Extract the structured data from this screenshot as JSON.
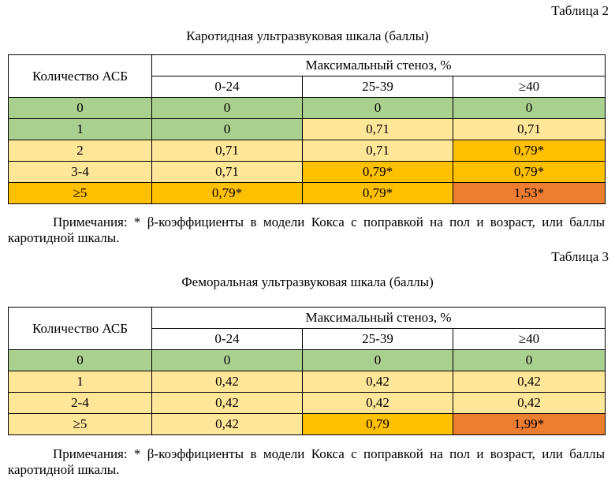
{
  "table2": {
    "label": "Таблица 2",
    "title": "Каротидная ультразвуковая шкала (баллы)",
    "row_header": "Количество АСБ",
    "group_header": "Максимальный стеноз, %",
    "columns": [
      "0-24",
      "25-39",
      "≥40"
    ],
    "rows": [
      {
        "label": "0",
        "cells": [
          "0",
          "0",
          "0"
        ],
        "level": [
          "green",
          "green",
          "green"
        ]
      },
      {
        "label": "1",
        "cells": [
          "0",
          "0,71",
          "0,71"
        ],
        "level": [
          "green",
          "light",
          "light"
        ]
      },
      {
        "label": "2",
        "cells": [
          "0,71",
          "0,71",
          "0,79*"
        ],
        "level": [
          "light",
          "light",
          "amber"
        ]
      },
      {
        "label": "3-4",
        "cells": [
          "0,71",
          "0,79*",
          "0,79*"
        ],
        "level": [
          "light",
          "amber",
          "amber"
        ]
      },
      {
        "label": "≥5",
        "cells": [
          "0,79*",
          "0,79*",
          "1,53*"
        ],
        "level": [
          "amber",
          "amber",
          "orange"
        ]
      }
    ],
    "note": "Примечания: * β-коэффициенты в модели Кокса с поправкой на пол и возраст, или баллы каротидной шкалы."
  },
  "table3": {
    "label": "Таблица 3",
    "title": "Феморальная ультразвуковая шкала (баллы)",
    "row_header": "Количество АСБ",
    "group_header": "Максимальный стеноз, %",
    "columns": [
      "0-24",
      "25-39",
      "≥40"
    ],
    "rows": [
      {
        "label": "0",
        "cells": [
          "0",
          "0",
          "0"
        ],
        "level": [
          "green",
          "green",
          "green"
        ]
      },
      {
        "label": "1",
        "cells": [
          "0,42",
          "0,42",
          "0,42"
        ],
        "level": [
          "light",
          "light",
          "light"
        ]
      },
      {
        "label": "2-4",
        "cells": [
          "0,42",
          "0,42",
          "0,42"
        ],
        "level": [
          "light",
          "light",
          "light"
        ]
      },
      {
        "label": "≥5",
        "cells": [
          "0,42",
          "0,79",
          "1,99*"
        ],
        "level": [
          "light",
          "amber",
          "orange"
        ]
      }
    ],
    "note": "Примечания: * β-коэффициенты в модели Кокса с поправкой на пол и возраст, или баллы каротидной шкалы."
  },
  "colors": {
    "green": "#a9d08e",
    "light": "#ffe699",
    "amber": "#ffc000",
    "orange": "#ed7d31"
  }
}
